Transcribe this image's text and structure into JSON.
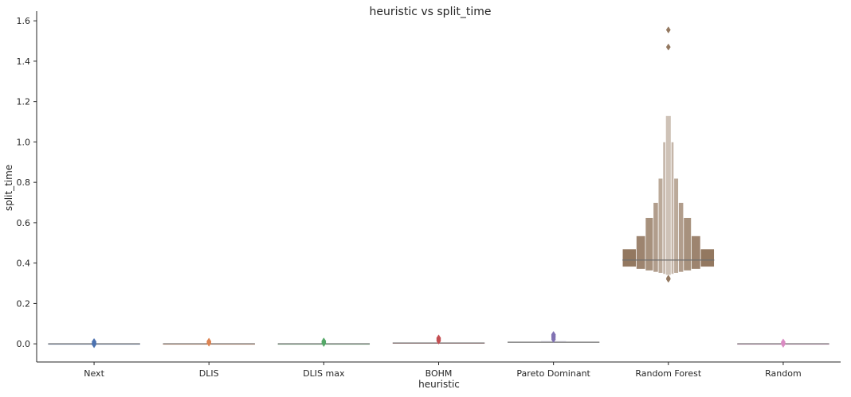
{
  "chart_data": {
    "type": "boxen",
    "title": "heuristic vs split_time",
    "xlabel": "heuristic",
    "ylabel": "split_time",
    "ylim": [
      -0.09,
      1.64
    ],
    "yticks": [
      0.0,
      0.2,
      0.4,
      0.6,
      0.8,
      1.0,
      1.2,
      1.4,
      1.6
    ],
    "ytick_labels": [
      "0.0",
      "0.2",
      "0.4",
      "0.6",
      "0.8",
      "1.0",
      "1.2",
      "1.4",
      "1.6"
    ],
    "grid": false,
    "categories": [
      "Next",
      "DLIS",
      "DLIS max",
      "BOHM",
      "Pareto Dominant",
      "Random Forest",
      "Random"
    ],
    "series": [
      {
        "category": "Next",
        "color": "#4c72b0",
        "median": 0.0,
        "boxes": [
          [
            -0.001,
            0.001,
            1.0
          ]
        ],
        "outliers": [
          0.002,
          0.004,
          0.007,
          0.009,
          0.011,
          -0.002,
          -0.004
        ]
      },
      {
        "category": "DLIS",
        "color": "#dd8452",
        "median": 0.0,
        "boxes": [
          [
            -0.001,
            0.001,
            1.0
          ]
        ],
        "outliers": [
          0.003,
          0.006,
          0.009,
          0.011,
          0.013
        ]
      },
      {
        "category": "DLIS max",
        "color": "#55a868",
        "median": 0.0,
        "boxes": [
          [
            -0.001,
            0.001,
            1.0
          ]
        ],
        "outliers": [
          0.004,
          0.008,
          0.011,
          0.014,
          0.002
        ]
      },
      {
        "category": "BOHM",
        "color": "#c44e52",
        "median": 0.004,
        "boxes": [
          [
            0.002,
            0.006,
            1.0
          ]
        ],
        "outliers": [
          0.014,
          0.019,
          0.023,
          0.026,
          0.029
        ]
      },
      {
        "category": "Pareto Dominant",
        "color": "#8172b3",
        "median": 0.008,
        "boxes": [
          [
            0.006,
            0.011,
            1.0
          ],
          [
            0.012,
            0.015,
            0.28
          ]
        ],
        "outliers": [
          0.022,
          0.028,
          0.033,
          0.038,
          0.043,
          0.046
        ]
      },
      {
        "category": "Random Forest",
        "color": "#937860",
        "median": 0.415,
        "boxes": [
          [
            0.381,
            0.47,
            1.0
          ],
          [
            0.37,
            0.535,
            0.7
          ],
          [
            0.362,
            0.625,
            0.5
          ],
          [
            0.355,
            0.7,
            0.33
          ],
          [
            0.35,
            0.82,
            0.22
          ],
          [
            0.345,
            1.0,
            0.12
          ],
          [
            0.34,
            1.13,
            0.06
          ]
        ],
        "outliers": [
          0.32,
          0.325,
          1.47,
          1.555
        ]
      },
      {
        "category": "Random",
        "color": "#da8bc3",
        "median": 0.0,
        "boxes": [
          [
            -0.001,
            0.001,
            1.0
          ]
        ],
        "outliers": [
          0.0,
          0.003,
          0.006,
          0.009,
          -0.002
        ]
      }
    ]
  }
}
